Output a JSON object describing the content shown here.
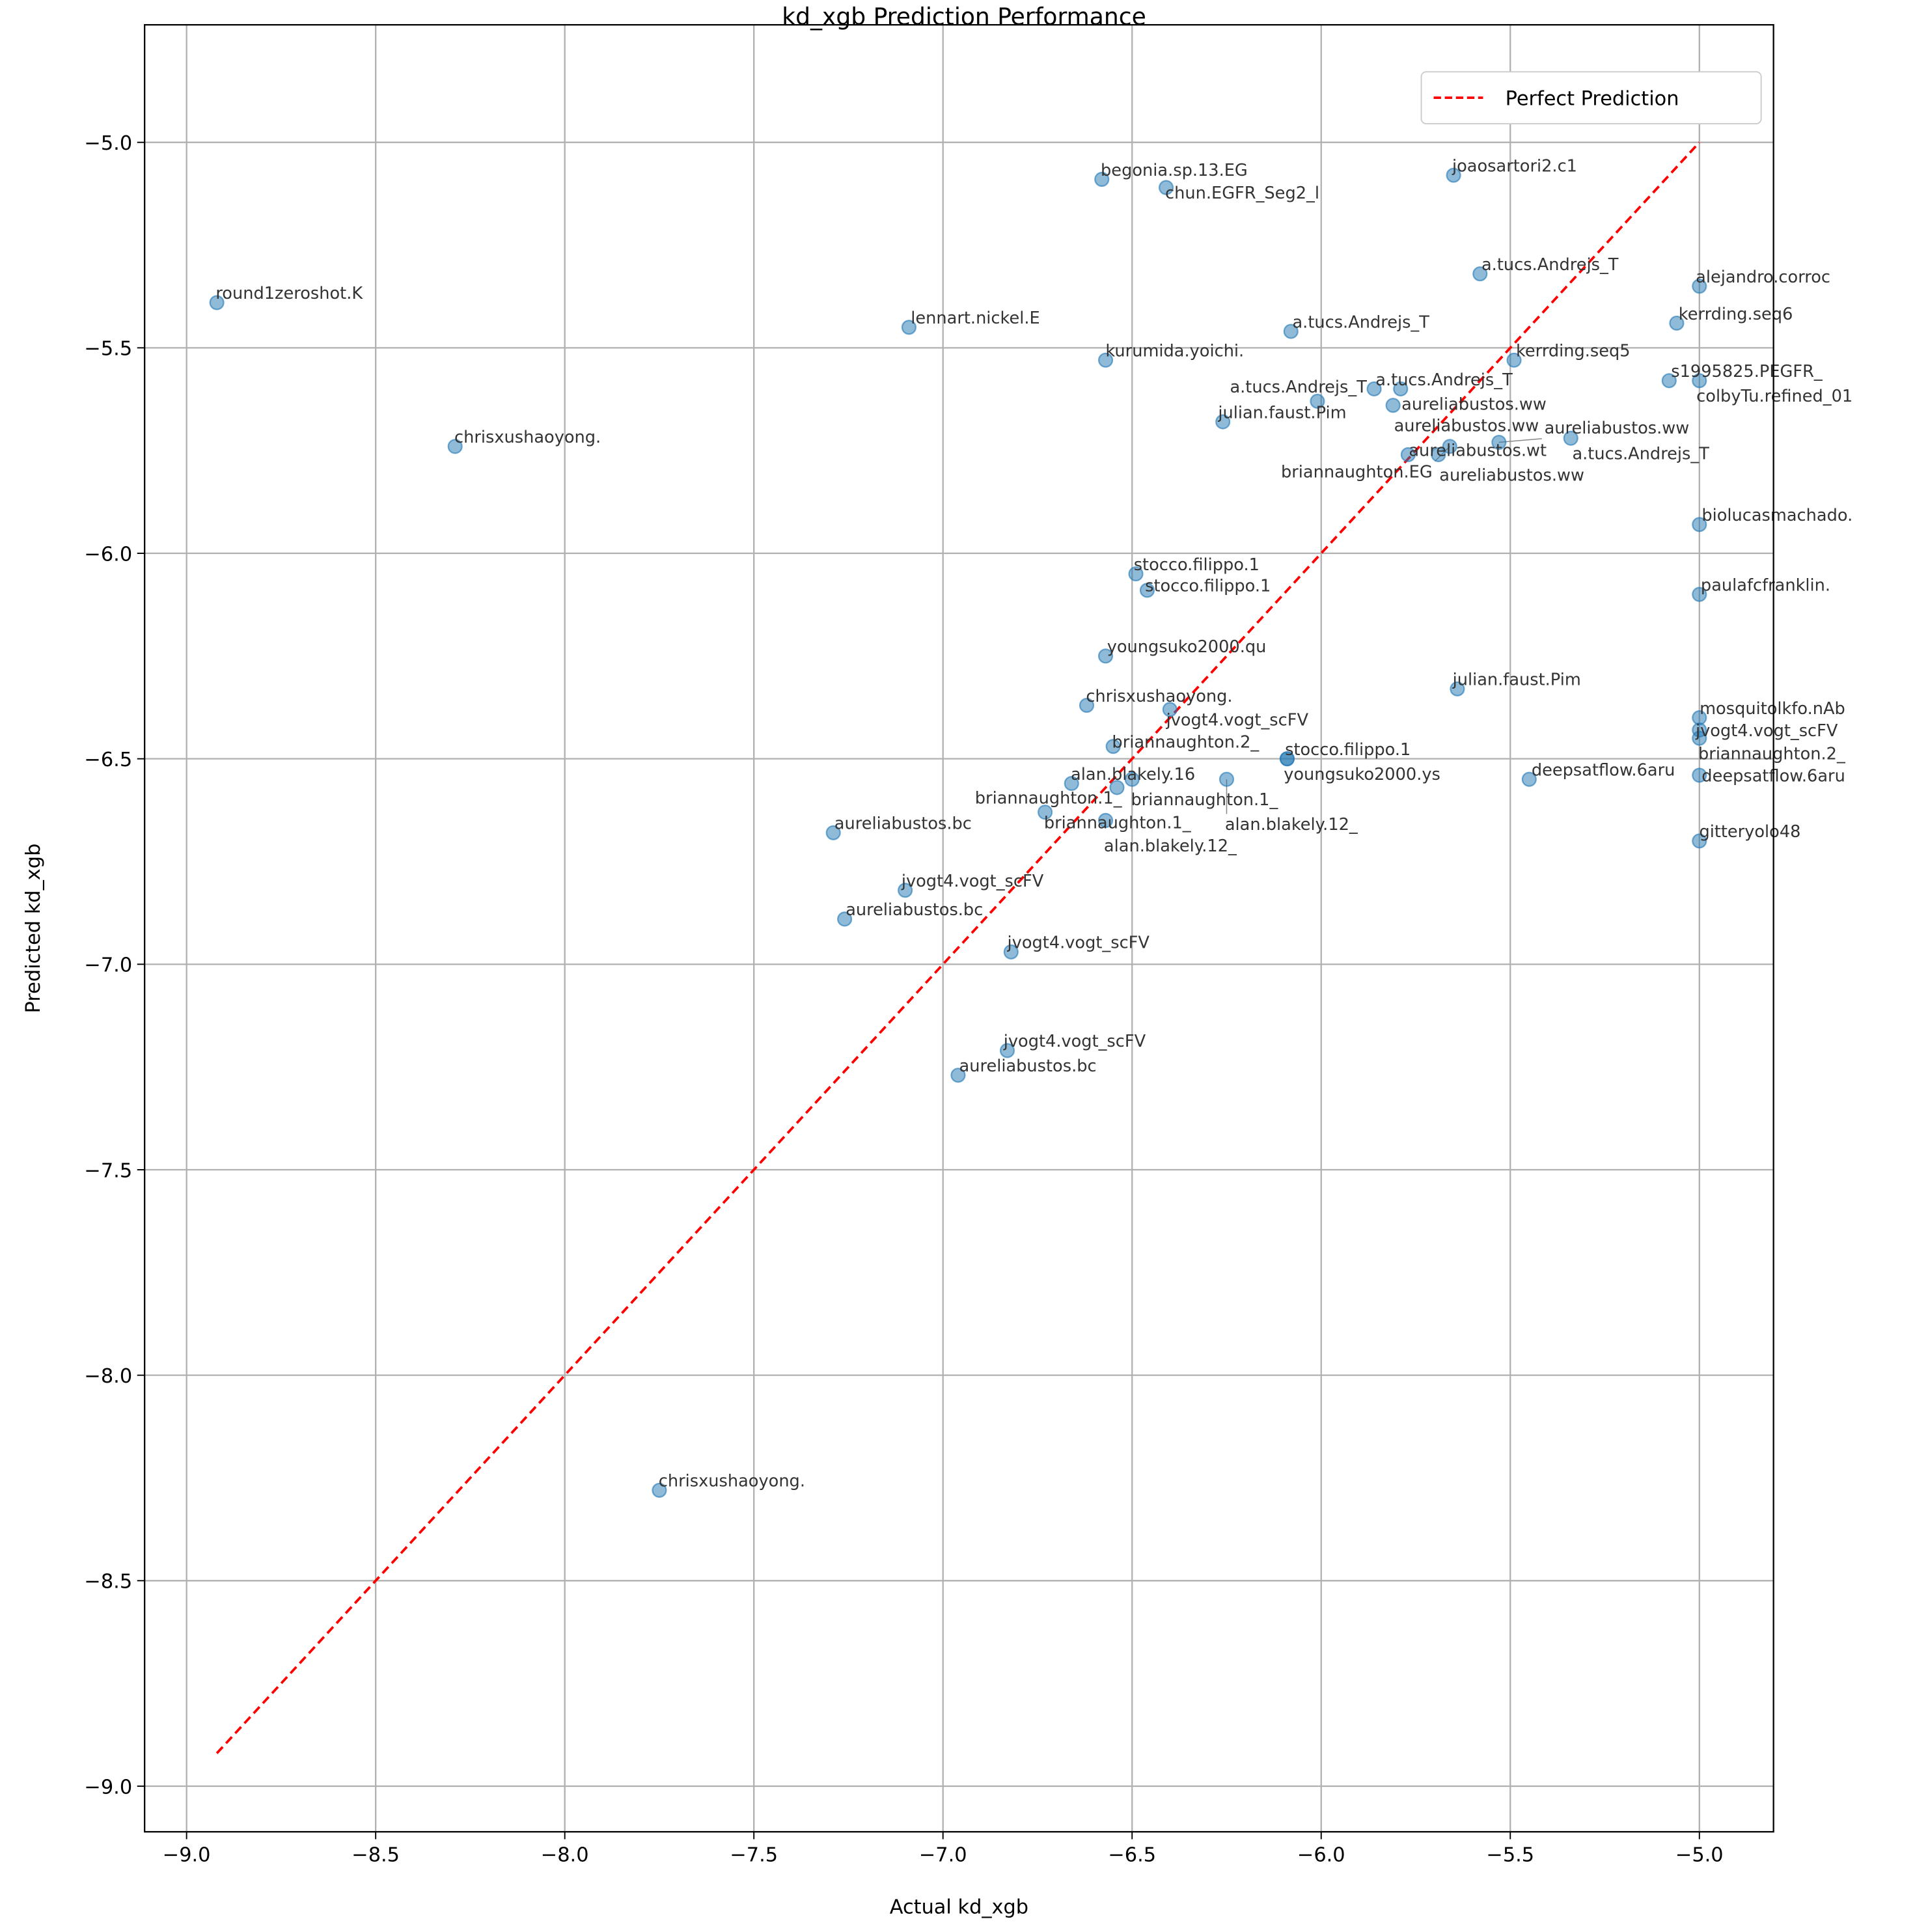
{
  "chart_data": {
    "type": "scatter",
    "title": "kd_xgb Prediction Performance",
    "xlabel": "Actual kd_xgb",
    "ylabel": "Predicted kd_xgb",
    "xlim": [
      -9.111,
      -4.804
    ],
    "ylim": [
      -9.111,
      -4.714
    ],
    "xticks": [
      -9.0,
      -8.5,
      -8.0,
      -7.5,
      -7.0,
      -6.5,
      -6.0,
      -5.5,
      -5.0
    ],
    "xtick_labels": [
      "−9.0",
      "−8.5",
      "−8.0",
      "−7.5",
      "−7.0",
      "−6.5",
      "−6.0",
      "−5.5",
      "−5.0"
    ],
    "yticks": [
      -9.0,
      -8.5,
      -8.0,
      -7.5,
      -7.0,
      -6.5,
      -6.0,
      -5.5,
      -5.0
    ],
    "ytick_labels": [
      "−9.0",
      "−8.5",
      "−8.0",
      "−7.5",
      "−7.0",
      "−6.5",
      "−6.0",
      "−5.5",
      "−5.0"
    ],
    "grid": true,
    "legend": {
      "position": "top-right",
      "entries": [
        "Perfect Prediction"
      ]
    },
    "reference_line": {
      "name": "Perfect Prediction",
      "from": [
        -8.92,
        -8.92
      ],
      "to": [
        -5.0,
        -5.0
      ],
      "color": "#ff0000",
      "style": "dashed"
    },
    "point_color": "#1f77b4",
    "points": [
      {
        "x": -8.92,
        "y": -5.39,
        "label": "round1zeroshot.K"
      },
      {
        "x": -8.29,
        "y": -5.74,
        "label": "chrisxushaoyong."
      },
      {
        "x": -7.09,
        "y": -5.45,
        "label": "lennart.nickel.E"
      },
      {
        "x": -6.58,
        "y": -5.09,
        "label": "begonia.sp.13.EG"
      },
      {
        "x": -6.41,
        "y": -5.11,
        "label": "chun.EGFR_Seg2_l"
      },
      {
        "x": -6.57,
        "y": -5.53,
        "label": "kurumida.yoichi."
      },
      {
        "x": -6.26,
        "y": -5.68,
        "label": "julian.faust.Pim"
      },
      {
        "x": -6.08,
        "y": -5.46,
        "label": "a.tucs.Andrejs_T"
      },
      {
        "x": -5.65,
        "y": -5.08,
        "label": "joaosartori2.c1"
      },
      {
        "x": -5.58,
        "y": -5.32,
        "label": "a.tucs.Andrejs_T"
      },
      {
        "x": -5.0,
        "y": -5.35,
        "label": "alejandro.corroc"
      },
      {
        "x": -5.06,
        "y": -5.44,
        "label": "kerrding.seq6"
      },
      {
        "x": -5.49,
        "y": -5.53,
        "label": "kerrding.seq5"
      },
      {
        "x": -5.08,
        "y": -5.58,
        "label": "s1995825.PEGFR_"
      },
      {
        "x": -5.0,
        "y": -5.58,
        "label": "colbyTu.refined_01"
      },
      {
        "x": -5.86,
        "y": -5.6,
        "label": "a.tucs.Andrejs_T"
      },
      {
        "x": -5.79,
        "y": -5.6,
        "label": "aureliabustos.ww"
      },
      {
        "x": -6.01,
        "y": -5.63,
        "label": "a.tucs.Andrejs_T"
      },
      {
        "x": -5.81,
        "y": -5.64,
        "label": "aureliabustos.ww"
      },
      {
        "x": -5.77,
        "y": -5.76,
        "label": "aureliabustos.wt"
      },
      {
        "x": -5.69,
        "y": -5.76,
        "label": "aureliabustos.ww"
      },
      {
        "x": -5.66,
        "y": -5.74,
        "label": "briannaughton.EG"
      },
      {
        "x": -5.53,
        "y": -5.73,
        "label": "aureliabustos.ww"
      },
      {
        "x": -5.34,
        "y": -5.72,
        "label": "a.tucs.Andrejs_T"
      },
      {
        "x": -5.0,
        "y": -5.93,
        "label": "biolucasmachado."
      },
      {
        "x": -5.0,
        "y": -6.1,
        "label": "paulafcfranklin."
      },
      {
        "x": -6.49,
        "y": -6.05,
        "label": "stocco.filippo.1"
      },
      {
        "x": -6.46,
        "y": -6.09,
        "label": "stocco.filippo.1"
      },
      {
        "x": -6.57,
        "y": -6.25,
        "label": "youngsuko2000.qu"
      },
      {
        "x": -6.62,
        "y": -6.37,
        "label": "chrisxushaoyong."
      },
      {
        "x": -6.4,
        "y": -6.38,
        "label": "jvogt4.vogt_scFV"
      },
      {
        "x": -5.64,
        "y": -6.33,
        "label": "julian.faust.Pim"
      },
      {
        "x": -5.0,
        "y": -6.4,
        "label": "mosquitolkfo.nAb"
      },
      {
        "x": -5.0,
        "y": -6.43,
        "label": "jvogt4.vogt_scFV"
      },
      {
        "x": -5.0,
        "y": -6.45,
        "label": "briannaughton.2_"
      },
      {
        "x": -5.0,
        "y": -6.54,
        "label": "deepsatflow.6aru"
      },
      {
        "x": -5.45,
        "y": -6.55,
        "label": "deepsatflow.6aru"
      },
      {
        "x": -5.0,
        "y": -6.7,
        "label": "gitteryolo48"
      },
      {
        "x": -6.55,
        "y": -6.47,
        "label": "briannaughton.2_"
      },
      {
        "x": -6.09,
        "y": -6.5,
        "label": "stocco.filippo.1"
      },
      {
        "x": -6.09,
        "y": -6.5,
        "label": "youngsuko2000.ys"
      },
      {
        "x": -6.66,
        "y": -6.56,
        "label": "alan.blakely.16"
      },
      {
        "x": -6.5,
        "y": -6.55,
        "label": "briannaughton.1_"
      },
      {
        "x": -6.54,
        "y": -6.57,
        "label": "briannaughton.1_"
      },
      {
        "x": -6.25,
        "y": -6.55,
        "label": "alan.blakely.12_"
      },
      {
        "x": -6.73,
        "y": -6.63,
        "label": "briannaughton.1_"
      },
      {
        "x": -6.57,
        "y": -6.65,
        "label": "alan.blakely.12_"
      },
      {
        "x": -7.29,
        "y": -6.68,
        "label": "aureliabustos.bc"
      },
      {
        "x": -7.1,
        "y": -6.82,
        "label": "jvogt4.vogt_scFV"
      },
      {
        "x": -7.26,
        "y": -6.89,
        "label": "aureliabustos.bc"
      },
      {
        "x": -6.82,
        "y": -6.97,
        "label": "jvogt4.vogt_scFV"
      },
      {
        "x": -6.83,
        "y": -7.21,
        "label": "jvogt4.vogt_scFV"
      },
      {
        "x": -6.96,
        "y": -7.27,
        "label": "aureliabustos.bc"
      },
      {
        "x": -7.75,
        "y": -8.28,
        "label": "chrisxushaoyong."
      }
    ]
  }
}
